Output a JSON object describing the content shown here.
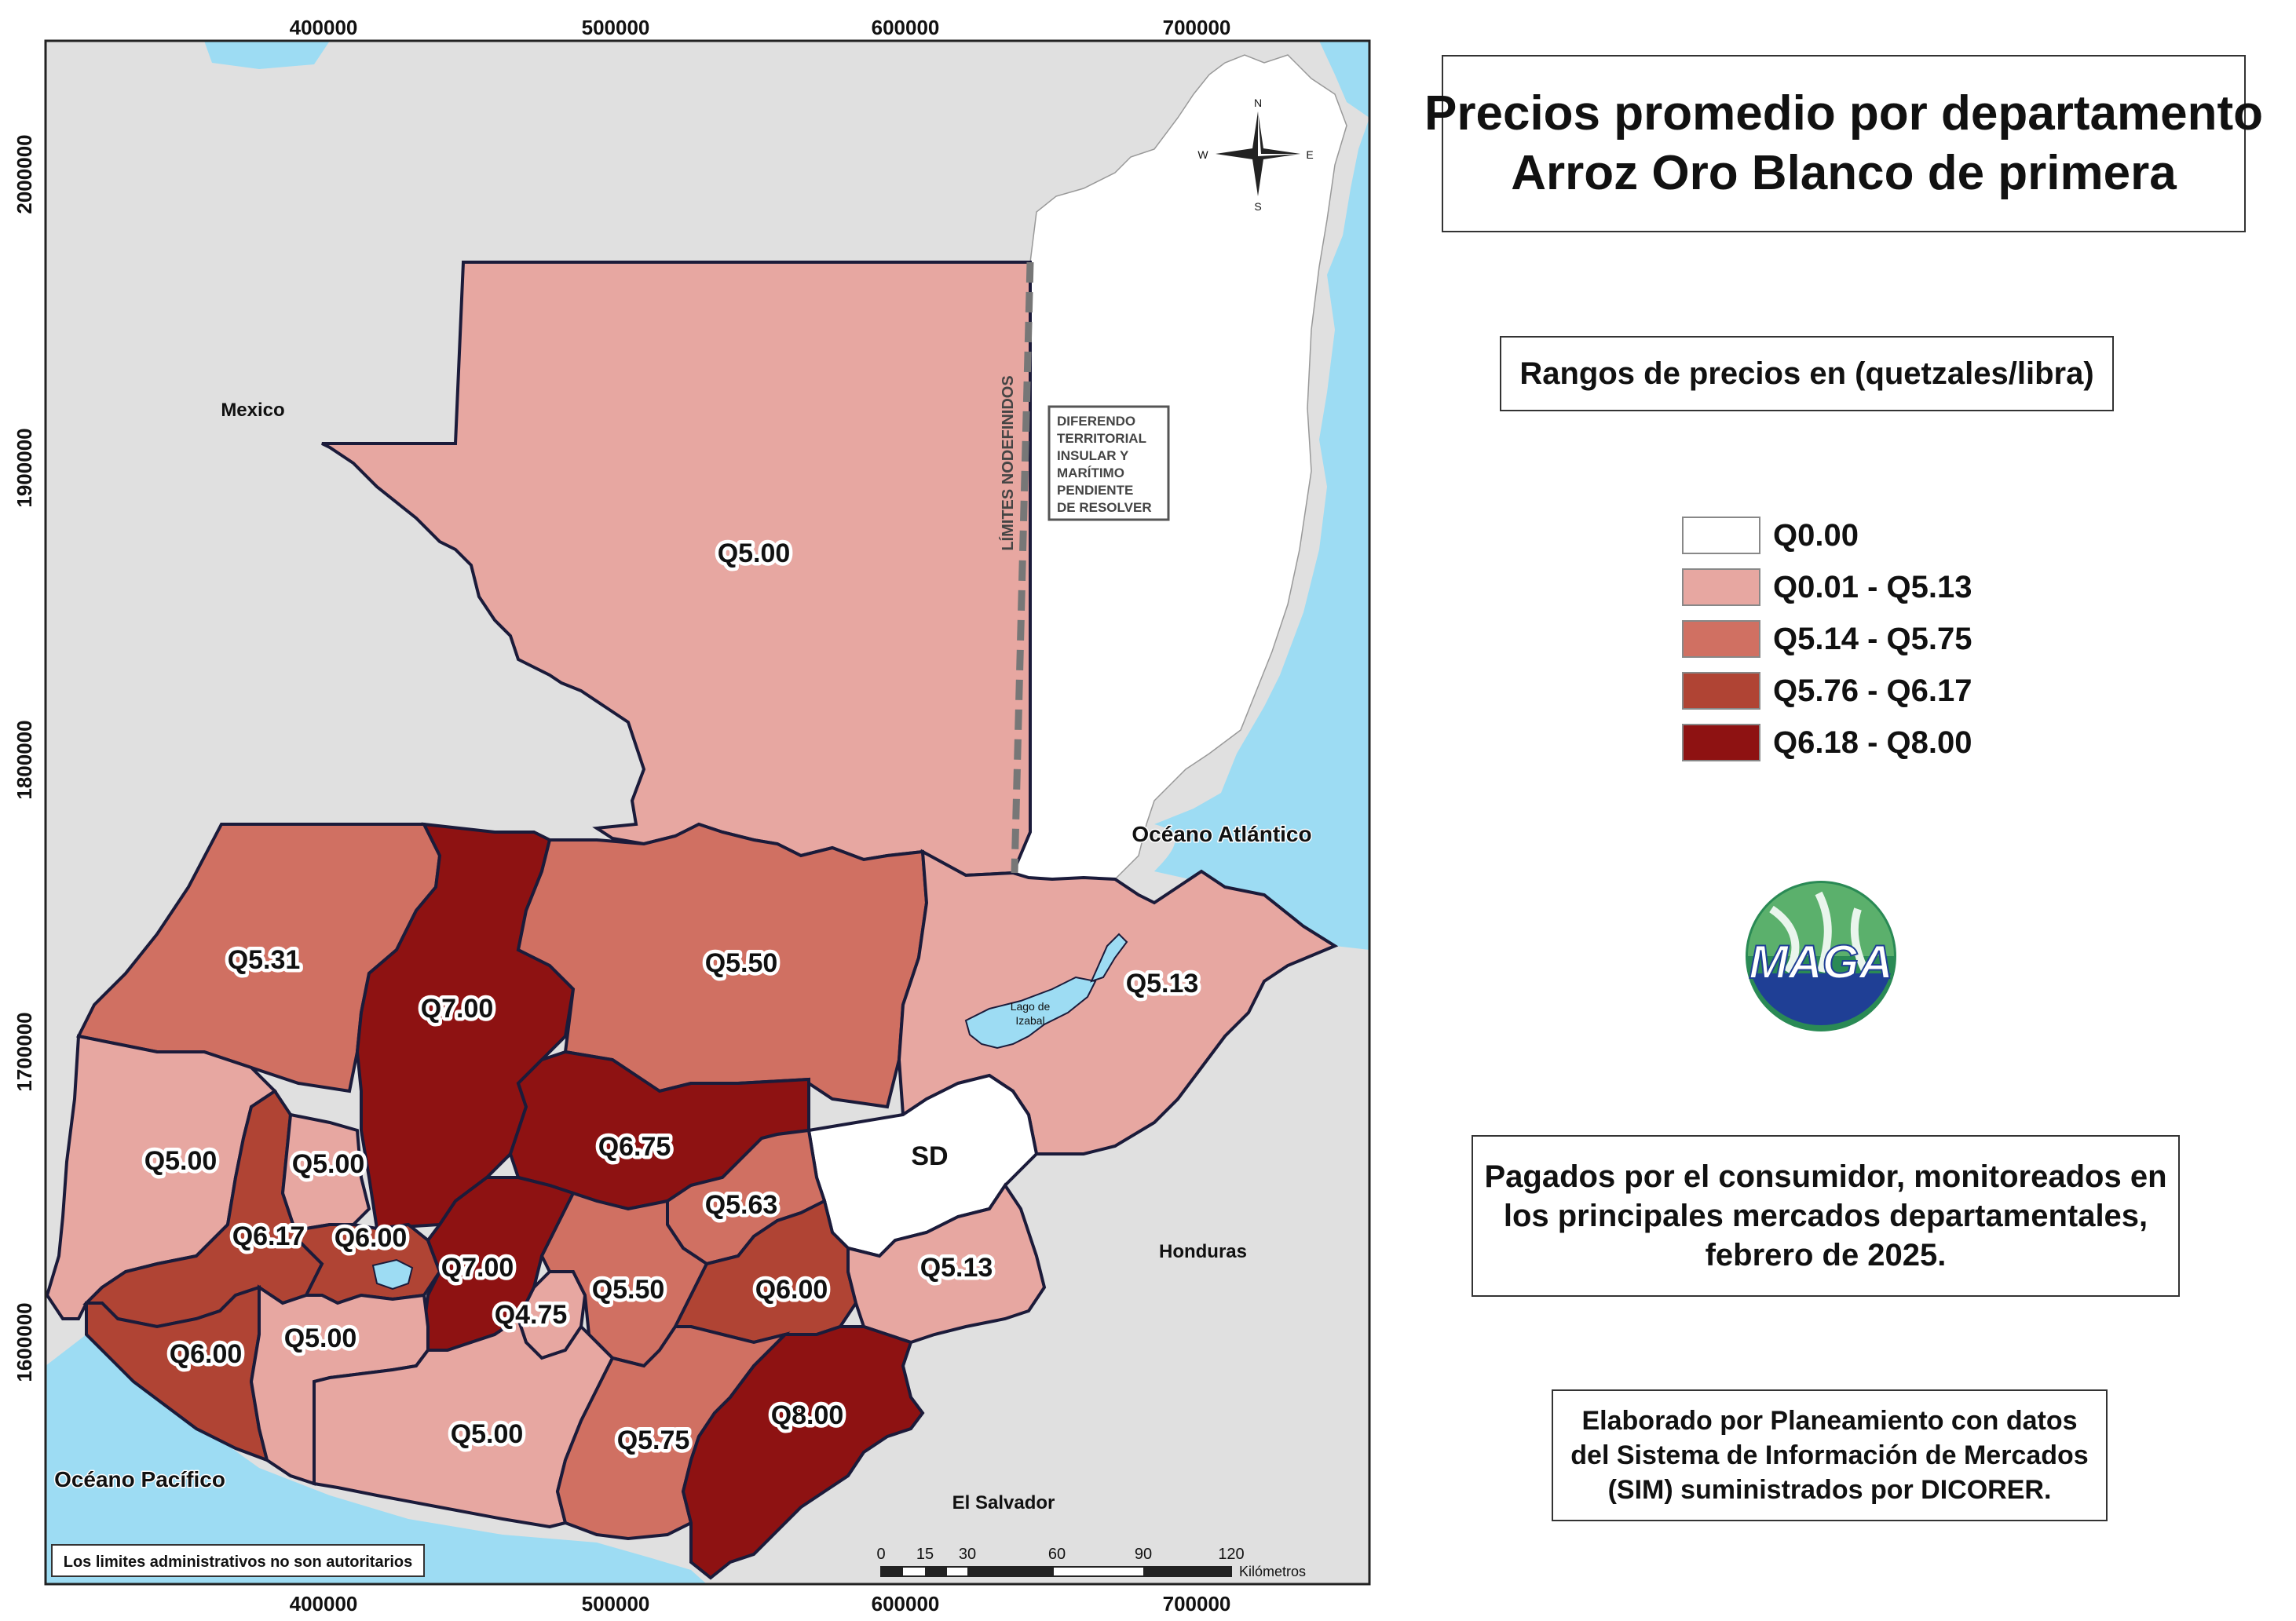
{
  "title": {
    "line1": "Precios promedio por departamento",
    "line2": "Arroz Oro Blanco de primera"
  },
  "range_title": "Rangos de precios en (quetzales/libra)",
  "legend": [
    {
      "label": "Q0.00",
      "color": "#ffffff"
    },
    {
      "label": "Q0.01 - Q5.13",
      "color": "#e7a7a1"
    },
    {
      "label": "Q5.14 - Q5.75",
      "color": "#d07062"
    },
    {
      "label": "Q5.76 - Q6.17",
      "color": "#b04434"
    },
    {
      "label": "Q6.18 - Q8.00",
      "color": "#8e1212"
    }
  ],
  "description": [
    "Pagados por el consumidor, monitoreados en",
    "los principales mercados departamentales,",
    "febrero de 2025."
  ],
  "credits": [
    "Elaborado por Planeamiento con datos",
    "del Sistema de Información de Mercados",
    "(SIM) suministrados por DICORER."
  ],
  "logo_text": "MAGA",
  "colors": {
    "ocean": "#9ddcf3",
    "land_other": "#e0e0e0",
    "border": "#1b1b3a"
  },
  "map": {
    "x_ticks": [
      "400000",
      "500000",
      "600000",
      "700000"
    ],
    "y_ticks": [
      "2000000",
      "1900000",
      "1800000",
      "1700000",
      "1600000"
    ],
    "labels": {
      "mexico": "Mexico",
      "honduras": "Honduras",
      "el_salvador": "El Salvador",
      "oceano_pacifico": "Océano Pacífico",
      "oceano_atlantico": "Océano Atlántico",
      "lago_izabal_1": "Lago de",
      "lago_izabal_2": "Izabal",
      "limites": "LÍMITES NODEFINIDOS",
      "diferendo": [
        "DIFERENDO",
        "TERRITORIAL",
        "INSULAR Y",
        "MARÍTIMO",
        "PENDIENTE",
        "DE RESOLVER"
      ],
      "disclaimer": "Los limites administrativos no son autoritarios"
    },
    "compass": {
      "n": "N",
      "s": "S",
      "e": "E",
      "w": "W"
    },
    "scale": {
      "ticks": [
        "0",
        "15",
        "30",
        "60",
        "90",
        "120"
      ],
      "unit": "Kilómetros"
    },
    "departments": [
      {
        "id": "peten",
        "price": "Q5.00",
        "class": 1
      },
      {
        "id": "huehuetenango",
        "price": "Q5.31",
        "class": 2
      },
      {
        "id": "quiche",
        "price": "Q7.00",
        "class": 4
      },
      {
        "id": "alta-verapaz",
        "price": "Q5.50",
        "class": 2
      },
      {
        "id": "izabal",
        "price": "Q5.13",
        "class": 1
      },
      {
        "id": "san-marcos",
        "price": "Q5.00",
        "class": 1
      },
      {
        "id": "totonicapan",
        "price": "Q5.00",
        "class": 1
      },
      {
        "id": "baja-verapaz",
        "price": "Q6.75",
        "class": 4
      },
      {
        "id": "zacapa",
        "price": "SD",
        "class": 0
      },
      {
        "id": "quetzaltenango",
        "price": "Q6.17",
        "class": 3
      },
      {
        "id": "solola",
        "price": "Q6.00",
        "class": 3
      },
      {
        "id": "el-progreso",
        "price": "Q5.63",
        "class": 2
      },
      {
        "id": "chimaltenango",
        "price": "Q7.00",
        "class": 4
      },
      {
        "id": "sacatepequez",
        "price": "Q4.75",
        "class": 1
      },
      {
        "id": "guatemala",
        "price": "Q5.50",
        "class": 2
      },
      {
        "id": "jalapa",
        "price": "Q6.00",
        "class": 3
      },
      {
        "id": "chiquimula",
        "price": "Q5.13",
        "class": 1
      },
      {
        "id": "retalhuleu",
        "price": "Q6.00",
        "class": 3
      },
      {
        "id": "suchitepequez",
        "price": "Q5.00",
        "class": 1
      },
      {
        "id": "escuintla",
        "price": "Q5.00",
        "class": 1
      },
      {
        "id": "santa-rosa",
        "price": "Q5.75",
        "class": 2
      },
      {
        "id": "jutiapa",
        "price": "Q8.00",
        "class": 4
      }
    ]
  }
}
